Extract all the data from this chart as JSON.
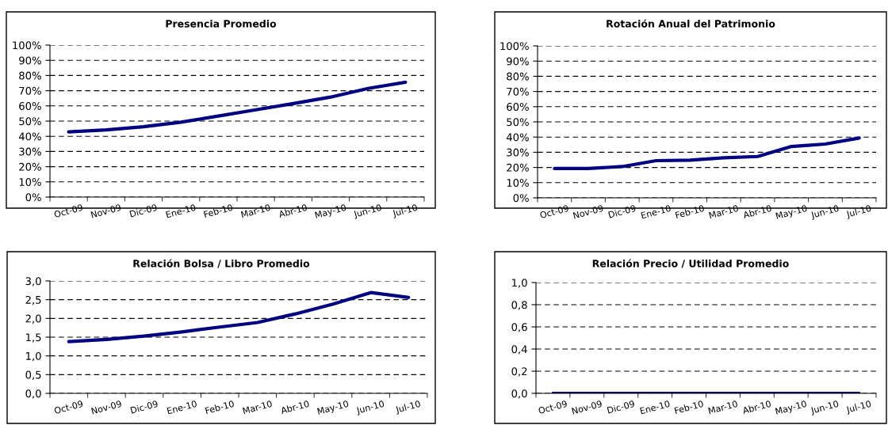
{
  "chart_data": [
    {
      "type": "line",
      "title": "Presencia Promedio",
      "categories": [
        "Oct-09",
        "Nov-09",
        "Dic-09",
        "Ene-10",
        "Feb-10",
        "Mar-10",
        "Abr-10",
        "May-10",
        "Jun-10",
        "Jul-10"
      ],
      "series": [
        {
          "color": "#000080",
          "values": [
            42.9,
            44.2,
            46.3,
            49.3,
            53.3,
            57.4,
            61.5,
            65.8,
            71.5,
            75.6
          ]
        }
      ],
      "ylim": [
        0,
        100
      ],
      "yticks": [
        {
          "value": 0,
          "label": "0%"
        },
        {
          "value": 10,
          "label": "10%"
        },
        {
          "value": 20,
          "label": "20%"
        },
        {
          "value": 30,
          "label": "30%"
        },
        {
          "value": 40,
          "label": "40%"
        },
        {
          "value": 50,
          "label": "50%"
        },
        {
          "value": 60,
          "label": "60%"
        },
        {
          "value": 70,
          "label": "70%"
        },
        {
          "value": 80,
          "label": "80%"
        },
        {
          "value": 90,
          "label": "90%"
        },
        {
          "value": 100,
          "label": "100%"
        }
      ],
      "grid": "y",
      "marker": "none",
      "line_style": "solid"
    },
    {
      "type": "line",
      "title": "Rotación Anual del Patrimonio",
      "categories": [
        "Oct-09",
        "Nov-09",
        "Dic-09",
        "Ene-10",
        "Feb-10",
        "Mar-10",
        "Abr-10",
        "May-10",
        "Jun-10",
        "Jul-10"
      ],
      "series": [
        {
          "color": "#000080",
          "values": [
            19.3,
            19.3,
            20.6,
            24.5,
            24.8,
            26.4,
            27.2,
            33.8,
            35.4,
            39.4
          ]
        }
      ],
      "ylim": [
        0,
        100
      ],
      "yticks": [
        {
          "value": 0,
          "label": "0%"
        },
        {
          "value": 10,
          "label": "10%"
        },
        {
          "value": 20,
          "label": "20%"
        },
        {
          "value": 30,
          "label": "30%"
        },
        {
          "value": 40,
          "label": "40%"
        },
        {
          "value": 50,
          "label": "50%"
        },
        {
          "value": 60,
          "label": "60%"
        },
        {
          "value": 70,
          "label": "70%"
        },
        {
          "value": 80,
          "label": "80%"
        },
        {
          "value": 90,
          "label": "90%"
        },
        {
          "value": 100,
          "label": "100%"
        }
      ],
      "grid": "y",
      "marker": "none",
      "line_style": "solid"
    },
    {
      "type": "line",
      "title": "Relación Bolsa / Libro Promedio",
      "categories": [
        "Oct-09",
        "Nov-09",
        "Dic-09",
        "Ene-10",
        "Feb-10",
        "Mar-10",
        "Abr-10",
        "May-10",
        "Jun-10",
        "Jul-10"
      ],
      "series": [
        {
          "color": "#000080",
          "values": [
            1.38,
            1.44,
            1.53,
            1.64,
            1.77,
            1.89,
            2.12,
            2.38,
            2.69,
            2.56
          ]
        }
      ],
      "ylim": [
        0,
        3
      ],
      "yticks": [
        {
          "value": 0,
          "label": "0,0"
        },
        {
          "value": 0.5,
          "label": "0,5"
        },
        {
          "value": 1,
          "label": "1,0"
        },
        {
          "value": 1.5,
          "label": "1,5"
        },
        {
          "value": 2,
          "label": "2,0"
        },
        {
          "value": 2.5,
          "label": "2,5"
        },
        {
          "value": 3,
          "label": "3,0"
        }
      ],
      "grid": "y",
      "marker": "none",
      "line_style": "solid"
    },
    {
      "type": "line",
      "title": "Relación Precio / Utilidad Promedio",
      "categories": [
        "Oct-09",
        "Nov-09",
        "Dic-09",
        "Ene-10",
        "Feb-10",
        "Mar-10",
        "Abr-10",
        "May-10",
        "Jun-10",
        "Jul-10"
      ],
      "series": [
        {
          "color": "#000080",
          "values": [
            0,
            0,
            0,
            0,
            0,
            0,
            0,
            0,
            0,
            0
          ]
        }
      ],
      "ylim": [
        0,
        1
      ],
      "yticks": [
        {
          "value": 0,
          "label": "0,0"
        },
        {
          "value": 0.2,
          "label": "0,2"
        },
        {
          "value": 0.4,
          "label": "0,4"
        },
        {
          "value": 0.6,
          "label": "0,6"
        },
        {
          "value": 0.8,
          "label": "0,8"
        },
        {
          "value": 1,
          "label": "1,0"
        }
      ],
      "grid": "y",
      "marker": "none",
      "line_style": "solid"
    }
  ]
}
